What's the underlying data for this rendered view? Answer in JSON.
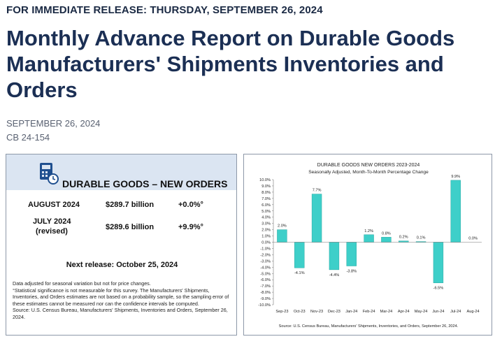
{
  "header": {
    "release": "FOR IMMEDIATE RELEASE: THURSDAY, SEPTEMBER 26, 2024",
    "title": "Monthly Advance Report on Durable Goods Manufacturers' Shipments Inventories and Orders",
    "date": "SEPTEMBER 26, 2024",
    "release_number": "CB 24-154"
  },
  "summary": {
    "title": "DURABLE GOODS – NEW ORDERS",
    "rows": [
      {
        "period": "AUGUST 2024",
        "period_note": "",
        "amount": "$289.7 billion",
        "change": "+0.0%°"
      },
      {
        "period": "JULY 2024",
        "period_note": "(revised)",
        "amount": "$289.6 billion",
        "change": "+9.9%°"
      }
    ],
    "next_release": "Next release: October 25, 2024",
    "notes": [
      "Data adjusted for seasonal variation but not for price changes.",
      "°Statistical significance is not measurable for this survey.  The Manufacturers' Shipments, Inventories, and Orders estimates are not based on a probability sample, so the sampling error of these estimates cannot be measured nor can the confidence intervals be computed.",
      "Source: U.S. Census Bureau, Manufacturers' Shipments, Inventories and Orders, September 26, 2024."
    ]
  },
  "colors": {
    "bar": "#3ecfc9",
    "bar_stroke": "#2aa9a4",
    "heading": "#1b2f54",
    "card_head": "#dbe5f2"
  },
  "chart_data": {
    "type": "bar",
    "title": "DURABLE GOODS NEW ORDERS 2023-2024",
    "subtitle": "Seasonally Adjusted,  Month-To-Month Percentage Change",
    "categories": [
      "Sep-23",
      "Oct-23",
      "Nov-23",
      "Dec-23",
      "Jan-24",
      "Feb-24",
      "Mar-24",
      "Apr-24",
      "May-24",
      "Jun-24",
      "Jul-24",
      "Aug-24"
    ],
    "values": [
      2.0,
      -4.1,
      7.7,
      -4.4,
      -3.8,
      1.2,
      0.8,
      0.2,
      0.1,
      -6.5,
      9.9,
      0.0
    ],
    "labels": [
      "2.0%",
      "-4.1%",
      "7.7%",
      "-4.4%",
      "-3.8%",
      "1.2%",
      "0.8%",
      "0.2%",
      "0.1%",
      "-6.5%",
      "9.9%",
      "0.0%"
    ],
    "ylim": [
      -10,
      10
    ],
    "yticks": [
      10,
      9,
      8,
      7,
      6,
      5,
      4,
      3,
      2,
      1,
      0,
      -1,
      -2,
      -3,
      -4,
      -5,
      -6,
      -7,
      -8,
      -9,
      -10
    ],
    "ytick_labels": [
      "10.0%",
      "9.0%",
      "8.0%",
      "7.0%",
      "6.0%",
      "5.0%",
      "4.0%",
      "3.0%",
      "2.0%",
      "1.0%",
      "0.0%",
      "-1.0%",
      "-2.0%",
      "-3.0%",
      "-4.0%",
      "-5.0%",
      "-6.0%",
      "-7.0%",
      "-8.0%",
      "-9.0%",
      "-10.0%"
    ],
    "source": "Source: U.S. Census Bureau, Manufacturers' Shipments, Inventories, and Orders, September 26, 2024.",
    "xlabel": "",
    "ylabel": ""
  }
}
